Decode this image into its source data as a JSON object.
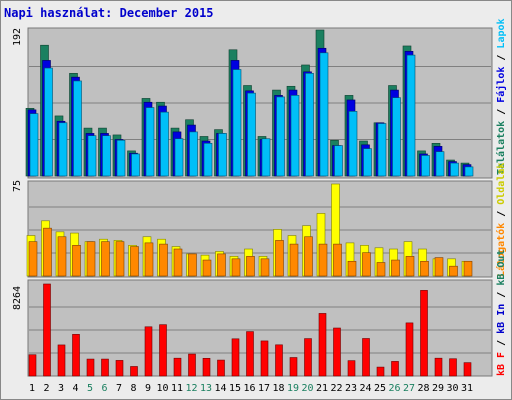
{
  "title": "Napi használat: December 2015",
  "colors": {
    "hits": "#1b8060",
    "files": "#0000e0",
    "pages": "#00bff8",
    "visits": "#ff8800",
    "sites": "#ffff00",
    "kbf": "#ff0000",
    "kbin": "#0000cc",
    "kbout": "#1b8060",
    "weekend": "#1b8060"
  },
  "chart_data": [
    {
      "type": "bar",
      "title": "Napi használat: December 2015",
      "ylabel": "Találatok / Fájlok / Lapok",
      "ymax_label": "192",
      "ylim": [
        0,
        192
      ],
      "categories": [
        "1",
        "2",
        "3",
        "4",
        "5",
        "6",
        "7",
        "8",
        "9",
        "10",
        "11",
        "12",
        "13",
        "14",
        "15",
        "16",
        "17",
        "18",
        "19",
        "20",
        "21",
        "22",
        "23",
        "24",
        "25",
        "26",
        "27",
        "28",
        "29",
        "30",
        "31"
      ],
      "series": [
        {
          "name": "Találatok",
          "color": "#1b8060",
          "values": [
            89,
            172,
            79,
            135,
            63,
            63,
            54,
            33,
            102,
            97,
            63,
            74,
            52,
            61,
            166,
            119,
            52,
            113,
            118,
            146,
            192,
            47,
            106,
            46,
            70,
            119,
            171,
            33,
            43,
            21,
            17
          ]
        },
        {
          "name": "Fájlok",
          "color": "#0000e0",
          "values": [
            87,
            152,
            72,
            130,
            56,
            56,
            48,
            30,
            97,
            92,
            58,
            67,
            46,
            56,
            152,
            112,
            48,
            106,
            113,
            137,
            168,
            40,
            100,
            41,
            70,
            113,
            164,
            29,
            39,
            19,
            15
          ]
        },
        {
          "name": "Lapok",
          "color": "#00bff8",
          "values": [
            82,
            142,
            70,
            125,
            53,
            53,
            47,
            29,
            90,
            84,
            49,
            58,
            43,
            56,
            140,
            109,
            49,
            104,
            106,
            135,
            162,
            40,
            85,
            36,
            69,
            103,
            159,
            27,
            32,
            17,
            12
          ]
        }
      ],
      "right_labels": [
        {
          "text": "Találatok",
          "color": "#1b8060"
        },
        {
          "text": "Fájlok",
          "color": "#0000e0"
        },
        {
          "text": "Lapok",
          "color": "#00bff8"
        }
      ]
    },
    {
      "type": "bar",
      "ylabel": "Látogatók / Oldalak",
      "ymax_label": "75",
      "ylim": [
        0,
        75
      ],
      "categories": [
        "1",
        "2",
        "3",
        "4",
        "5",
        "6",
        "7",
        "8",
        "9",
        "10",
        "11",
        "12",
        "13",
        "14",
        "15",
        "16",
        "17",
        "18",
        "19",
        "20",
        "21",
        "22",
        "23",
        "24",
        "25",
        "26",
        "27",
        "28",
        "29",
        "30",
        "31"
      ],
      "series": [
        {
          "name": "Látogatók",
          "color": "#ffff00",
          "values": [
            33,
            45,
            36,
            35,
            28,
            30,
            29,
            25,
            32,
            30,
            24,
            18,
            17,
            20,
            16,
            22,
            16,
            38,
            33,
            41,
            51,
            75,
            27,
            25,
            23,
            22,
            28,
            22,
            14,
            14,
            12
          ]
        },
        {
          "name": "Oldalak",
          "color": "#ff8800",
          "values": [
            28,
            39,
            32,
            25,
            28,
            28,
            28,
            24,
            27,
            26,
            22,
            18,
            13,
            18,
            14,
            16,
            14,
            29,
            26,
            32,
            26,
            26,
            12,
            19,
            11,
            13,
            16,
            12,
            15,
            8,
            12
          ]
        }
      ],
      "right_labels": [
        {
          "text": "Látogatók",
          "color": "#ff8800"
        },
        {
          "text": "Oldalak",
          "color": "#ffff00"
        }
      ]
    },
    {
      "type": "bar",
      "ylabel": "kB F / kB In / kB Out",
      "ymax_label": "8264",
      "ylim": [
        0,
        8264
      ],
      "categories": [
        "1",
        "2",
        "3",
        "4",
        "5",
        "6",
        "7",
        "8",
        "9",
        "10",
        "11",
        "12",
        "13",
        "14",
        "15",
        "16",
        "17",
        "18",
        "19",
        "20",
        "21",
        "22",
        "23",
        "24",
        "25",
        "26",
        "27",
        "28",
        "29",
        "30",
        "31"
      ],
      "series": [
        {
          "name": "kB F",
          "color": "#ff0000",
          "values": [
            1910,
            8264,
            2790,
            3740,
            1520,
            1520,
            1400,
            855,
            4420,
            4610,
            1600,
            1970,
            1590,
            1430,
            3340,
            3990,
            3150,
            2800,
            1660,
            3360,
            5620,
            4310,
            1380,
            3370,
            800,
            1310,
            4770,
            7690,
            1600,
            1550,
            1200
          ]
        }
      ],
      "right_labels": [
        {
          "text": "kB F",
          "color": "#ff0000"
        },
        {
          "text": "kB In",
          "color": "#0000cc"
        },
        {
          "text": "kB Out",
          "color": "#1b8060"
        }
      ]
    }
  ],
  "weekend_days": [
    "5",
    "6",
    "12",
    "13",
    "19",
    "20",
    "26",
    "27"
  ]
}
